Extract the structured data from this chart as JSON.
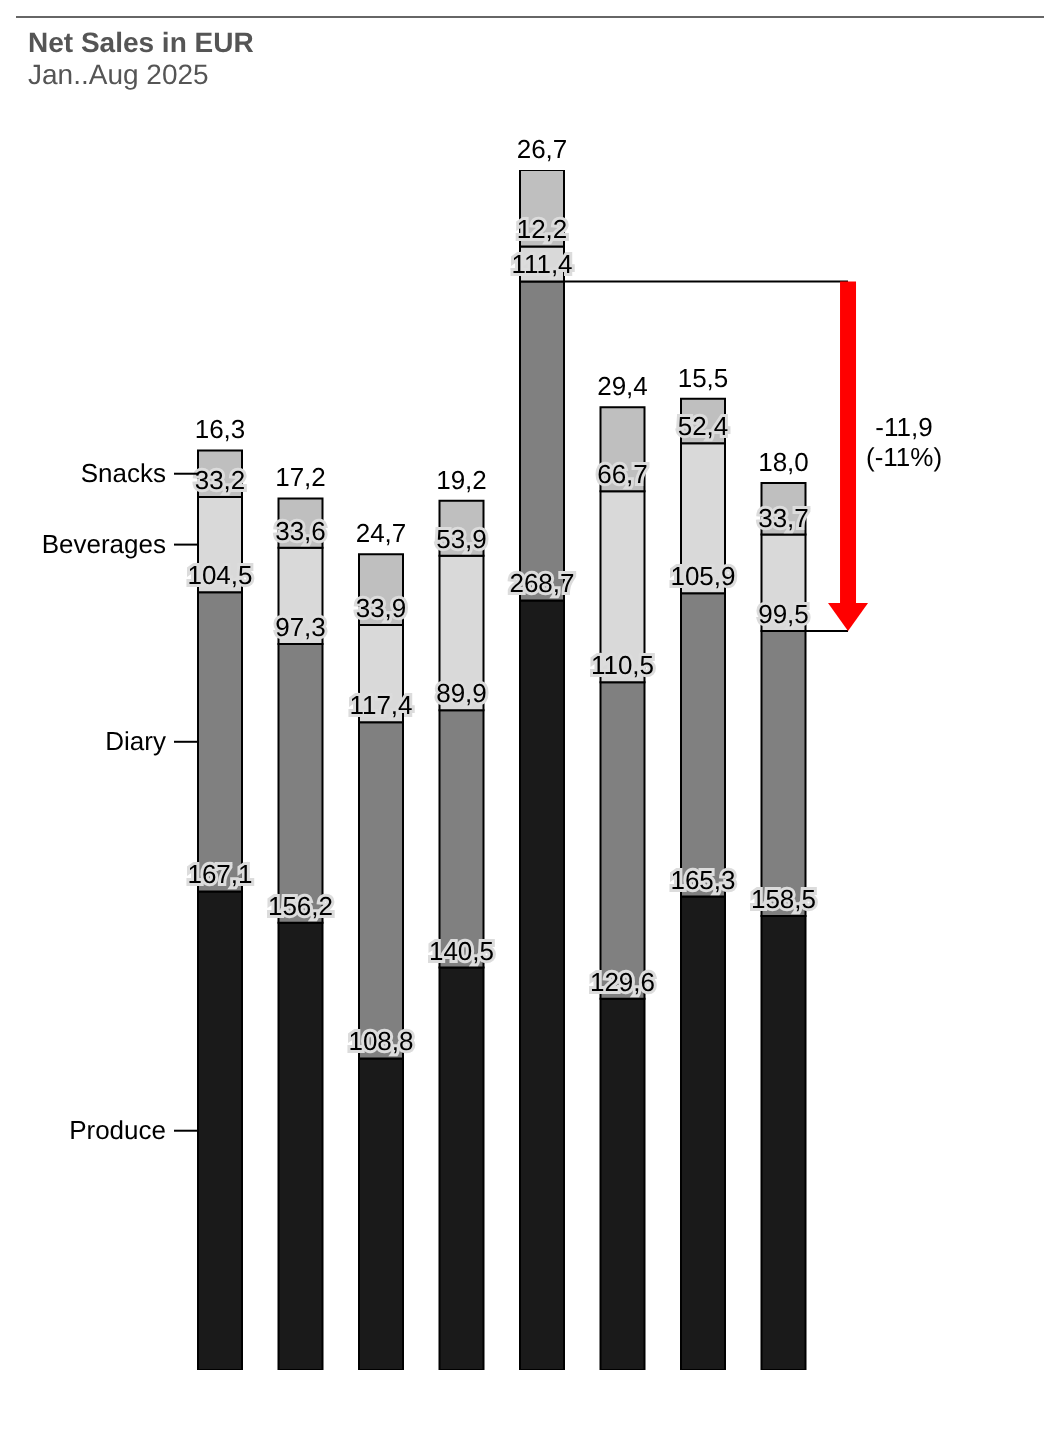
{
  "chart_data": {
    "type": "bar",
    "title": "Net Sales in EUR",
    "subtitle": "Jan..Aug 2025",
    "stacked": true,
    "tick_labels": false,
    "legend": "left",
    "categories": [
      null,
      null,
      null,
      null,
      null,
      null,
      null,
      null
    ],
    "series": [
      {
        "name": "Produce",
        "color": "#1a1a1a",
        "values": [
          167.1,
          156.2,
          108.8,
          140.5,
          268.7,
          129.6,
          165.3,
          158.5
        ],
        "value_labels": [
          "167,1",
          "156,2",
          "108,8",
          "140,5",
          "268,7",
          "129,6",
          "165,3",
          "158,5"
        ]
      },
      {
        "name": "Diary",
        "color": "#808080",
        "values": [
          104.5,
          97.3,
          117.4,
          89.9,
          111.4,
          110.5,
          105.9,
          99.5
        ],
        "value_labels": [
          "104,5",
          "97,3",
          "117,4",
          "89,9",
          "111,4",
          "110,5",
          "105,9",
          "99,5"
        ]
      },
      {
        "name": "Beverages",
        "color": "#d9d9d9",
        "values": [
          33.2,
          33.6,
          33.9,
          53.9,
          12.2,
          66.7,
          52.4,
          33.7
        ],
        "value_labels": [
          "33,2",
          "33,6",
          "33,9",
          "53,9",
          "12,2",
          "66,7",
          "52,4",
          "33,7"
        ]
      },
      {
        "name": "Snacks",
        "color": "#bfbfbf",
        "values": [
          16.3,
          17.2,
          24.7,
          19.2,
          26.7,
          29.4,
          15.5,
          18.0
        ],
        "value_labels": [
          "16,3",
          "17,2",
          "24,7",
          "19,2",
          "26,7",
          "29,4",
          "15,5",
          "18,0"
        ]
      }
    ],
    "annotations": [
      "-11,9 (-11%)"
    ]
  }
}
